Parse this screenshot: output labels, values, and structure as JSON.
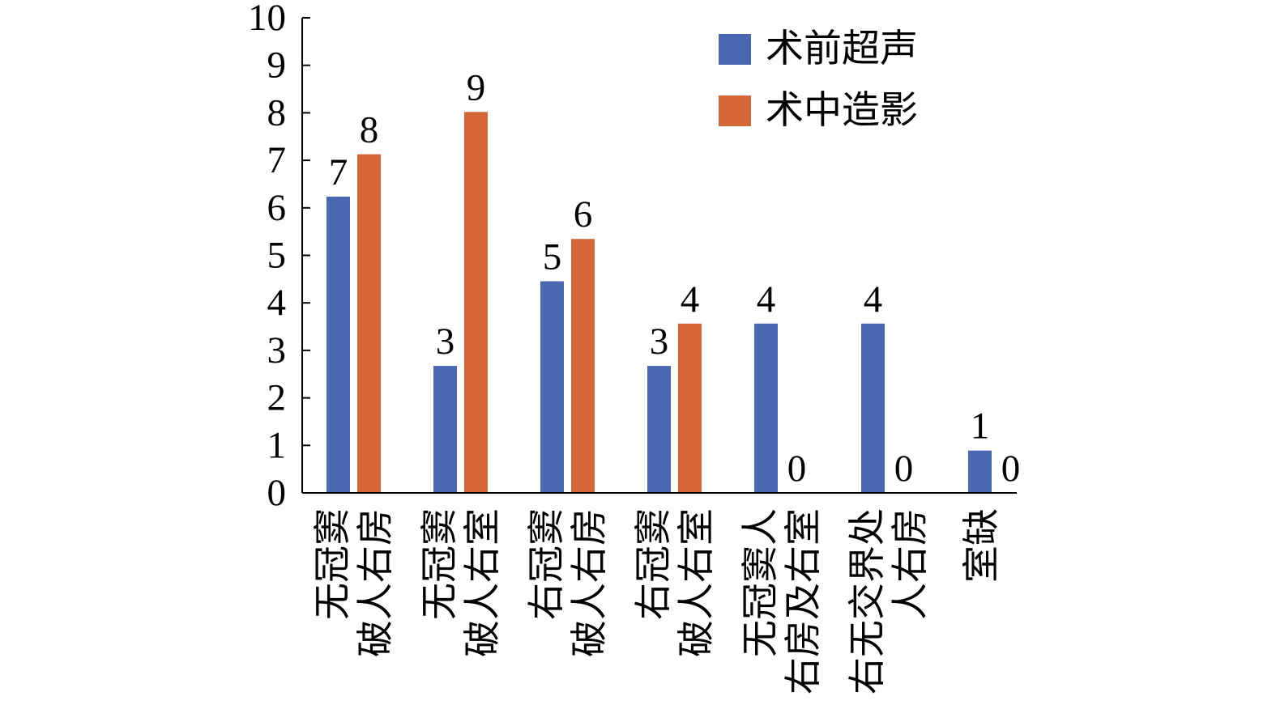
{
  "chart_data": {
    "type": "bar",
    "categories": [
      "无冠窦\n破人右房",
      "无冠窦\n破人右室",
      "右冠窦\n破人右房",
      "右冠窦\n破人右室",
      "无冠窦人\n右房及右室",
      "右无交界处\n人右房",
      "室缺"
    ],
    "series": [
      {
        "name": "术前超声",
        "values": [
          7,
          3,
          5,
          3,
          4,
          4,
          1
        ],
        "color": "#4A68B2"
      },
      {
        "name": "术中造影",
        "values": [
          8,
          9,
          6,
          4,
          0,
          0,
          0
        ],
        "color": "#D66538"
      }
    ],
    "ylim": [
      0,
      10
    ],
    "yticks": [
      0,
      1,
      2,
      3,
      4,
      5,
      6,
      7,
      8,
      9,
      10
    ],
    "legend": "top-right",
    "grid": false
  }
}
